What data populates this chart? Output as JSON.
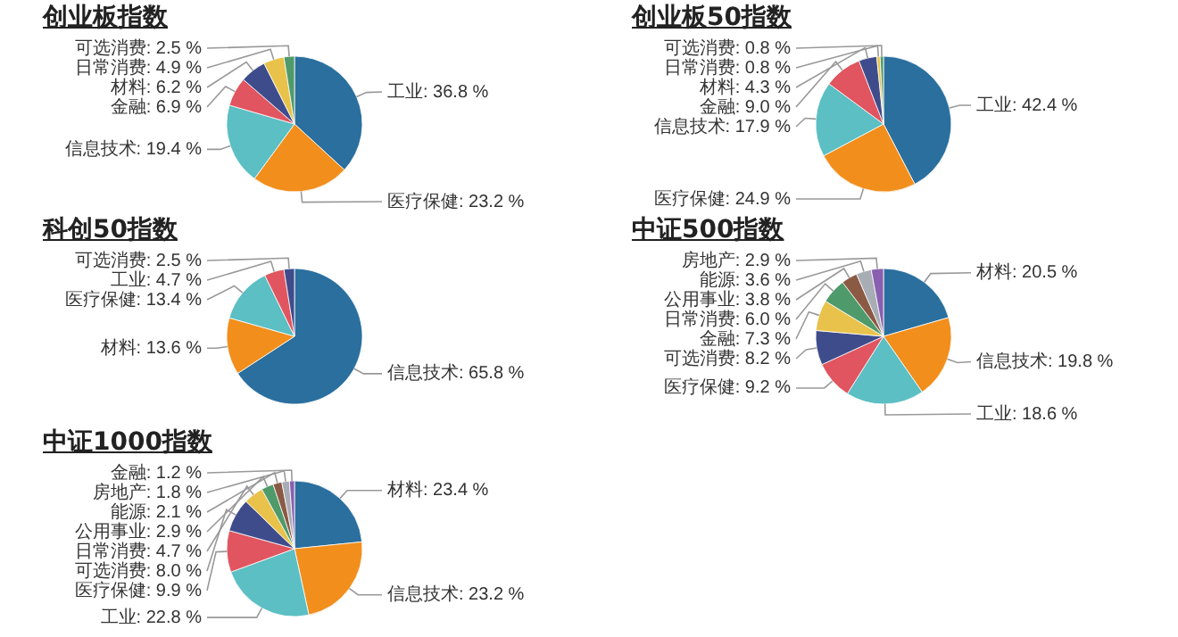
{
  "chart_data": [
    {
      "type": "pie",
      "title": "创业板指数",
      "categories": [
        "工业",
        "医疗保健",
        "信息技术",
        "金融",
        "材料",
        "日常消费",
        "可选消费"
      ],
      "values": [
        36.8,
        23.2,
        19.4,
        6.9,
        6.2,
        4.9,
        2.5
      ],
      "value_labels": [
        "36.8 %",
        "23.2 %",
        "19.4 %",
        "6.9 %",
        "6.2 %",
        "4.9 %",
        "2.5 %"
      ],
      "colors": [
        "#2a6f9e",
        "#f28e1c",
        "#5bbfc4",
        "#e0555f",
        "#3f4c8c",
        "#e8c24a",
        "#4f9a6a"
      ]
    },
    {
      "type": "pie",
      "title": "创业板50指数",
      "categories": [
        "工业",
        "医疗保健",
        "信息技术",
        "金融",
        "材料",
        "日常消费",
        "可选消费"
      ],
      "values": [
        42.4,
        24.9,
        17.9,
        9.0,
        4.3,
        0.8,
        0.8
      ],
      "value_labels": [
        "42.4 %",
        "24.9 %",
        "17.9 %",
        "9.0 %",
        "4.3 %",
        "0.8 %",
        "0.8 %"
      ],
      "colors": [
        "#2a6f9e",
        "#f28e1c",
        "#5bbfc4",
        "#e0555f",
        "#3f4c8c",
        "#e8c24a",
        "#4f9a6a"
      ]
    },
    {
      "type": "pie",
      "title": "科创50指数",
      "categories": [
        "信息技术",
        "材料",
        "医疗保健",
        "工业",
        "可选消费"
      ],
      "values": [
        65.8,
        13.6,
        13.4,
        4.7,
        2.5
      ],
      "value_labels": [
        "65.8 %",
        "13.6 %",
        "13.4 %",
        "4.7 %",
        "2.5 %"
      ],
      "colors": [
        "#2a6f9e",
        "#f28e1c",
        "#5bbfc4",
        "#e0555f",
        "#3f4c8c"
      ]
    },
    {
      "type": "pie",
      "title": "中证500指数",
      "categories": [
        "材料",
        "信息技术",
        "工业",
        "医疗保健",
        "可选消费",
        "金融",
        "日常消费",
        "公用事业",
        "能源",
        "房地产"
      ],
      "values": [
        20.5,
        19.8,
        18.6,
        9.2,
        8.2,
        7.3,
        6.0,
        3.8,
        3.6,
        2.9
      ],
      "value_labels": [
        "20.5 %",
        "19.8 %",
        "18.6 %",
        "9.2 %",
        "8.2 %",
        "7.3 %",
        "6.0 %",
        "3.8 %",
        "3.6 %",
        "2.9 %"
      ],
      "colors": [
        "#2a6f9e",
        "#f28e1c",
        "#5bbfc4",
        "#e0555f",
        "#3f4c8c",
        "#e8c24a",
        "#4f9a6a",
        "#8b5a44",
        "#a8adb5",
        "#8a5fb0"
      ]
    },
    {
      "type": "pie",
      "title": "中证1000指数",
      "categories": [
        "材料",
        "信息技术",
        "工业",
        "医疗保健",
        "可选消费",
        "日常消费",
        "公用事业",
        "能源",
        "房地产",
        "金融"
      ],
      "values": [
        23.4,
        23.2,
        22.8,
        9.9,
        8.0,
        4.7,
        2.9,
        2.1,
        1.8,
        1.2
      ],
      "value_labels": [
        "23.4 %",
        "23.2 %",
        "22.8 %",
        "9.9 %",
        "8.0 %",
        "4.7 %",
        "2.9 %",
        "2.1 %",
        "1.8 %",
        "1.2 %"
      ],
      "colors": [
        "#2a6f9e",
        "#f28e1c",
        "#5bbfc4",
        "#e0555f",
        "#3f4c8c",
        "#e8c24a",
        "#4f9a6a",
        "#8b5a44",
        "#a8adb5",
        "#8a5fb0"
      ]
    }
  ]
}
